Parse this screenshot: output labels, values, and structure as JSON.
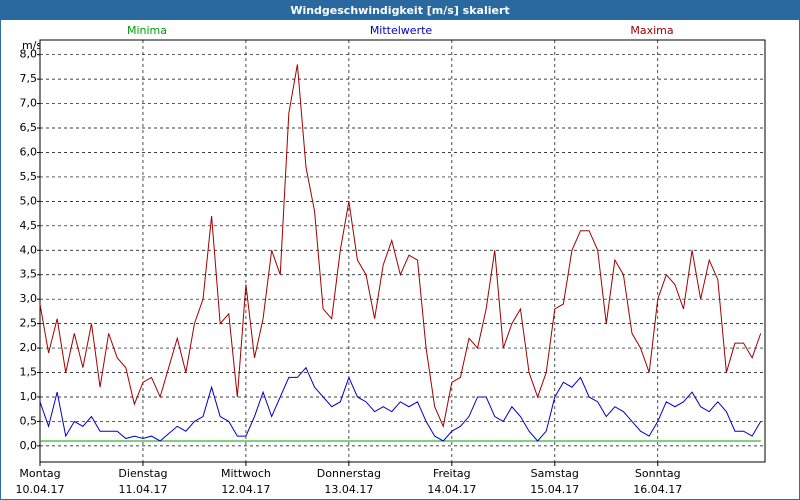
{
  "chart_data": {
    "type": "line",
    "title": "Windgeschwindigkeit [m/s] skaliert",
    "y_label": "m/s",
    "x": [
      0,
      2,
      4,
      6,
      8,
      10,
      12,
      14,
      16,
      18,
      20,
      22,
      24,
      26,
      28,
      30,
      32,
      34,
      36,
      38,
      40,
      42,
      44,
      46,
      48,
      50,
      52,
      54,
      56,
      58,
      60,
      62,
      64,
      66,
      68,
      70,
      72,
      74,
      76,
      78,
      80,
      82,
      84,
      86,
      88,
      90,
      92,
      94,
      96,
      98,
      100,
      102,
      104,
      106,
      108,
      110,
      112,
      114,
      116,
      118,
      120,
      122,
      124,
      126,
      128,
      130,
      132,
      134,
      136,
      138,
      140,
      142,
      144,
      146,
      148,
      150,
      152,
      154,
      156,
      158,
      160,
      162,
      164,
      166,
      168
    ],
    "series": [
      {
        "name": "Minima",
        "color": "#00a000",
        "x": [
          0,
          168
        ],
        "values": [
          0.1,
          0.1
        ]
      },
      {
        "name": "Mittelwerte",
        "color": "#0000c8",
        "values": [
          0.9,
          0.4,
          1.1,
          0.2,
          0.5,
          0.4,
          0.6,
          0.3,
          0.3,
          0.3,
          0.15,
          0.2,
          0.15,
          0.2,
          0.1,
          0.25,
          0.4,
          0.3,
          0.5,
          0.6,
          1.2,
          0.6,
          0.5,
          0.2,
          0.2,
          0.6,
          1.1,
          0.6,
          1.0,
          1.4,
          1.4,
          1.6,
          1.2,
          1.0,
          0.8,
          0.9,
          1.4,
          1.0,
          0.9,
          0.7,
          0.8,
          0.7,
          0.9,
          0.8,
          0.9,
          0.5,
          0.2,
          0.1,
          0.3,
          0.4,
          0.6,
          1.0,
          1.0,
          0.6,
          0.5,
          0.8,
          0.6,
          0.3,
          0.1,
          0.3,
          1.0,
          1.3,
          1.2,
          1.4,
          1.0,
          0.9,
          0.6,
          0.8,
          0.7,
          0.5,
          0.3,
          0.2,
          0.5,
          0.9,
          0.8,
          0.9,
          1.1,
          0.8,
          0.7,
          0.9,
          0.7,
          0.3,
          0.3,
          0.2,
          0.5
        ]
      },
      {
        "name": "Maxima",
        "color": "#a00000",
        "values": [
          2.9,
          1.9,
          2.6,
          1.5,
          2.3,
          1.6,
          2.5,
          1.2,
          2.3,
          1.8,
          1.6,
          0.85,
          1.3,
          1.4,
          1.0,
          1.6,
          2.2,
          1.5,
          2.5,
          3.0,
          4.7,
          2.5,
          2.7,
          1.0,
          3.3,
          1.8,
          2.6,
          4.0,
          3.5,
          6.8,
          7.8,
          5.7,
          4.8,
          2.8,
          2.6,
          4.0,
          5.0,
          3.8,
          3.5,
          2.6,
          3.7,
          4.2,
          3.5,
          3.9,
          3.8,
          2.0,
          0.8,
          0.4,
          1.3,
          1.4,
          2.2,
          2.0,
          2.8,
          4.0,
          2.0,
          2.5,
          2.8,
          1.5,
          1.0,
          1.5,
          2.8,
          2.9,
          4.0,
          4.4,
          4.4,
          4.0,
          2.5,
          3.8,
          3.5,
          2.3,
          2.0,
          1.5,
          3.0,
          3.5,
          3.3,
          2.8,
          4.0,
          3.0,
          3.8,
          3.4,
          1.5,
          2.1,
          2.1,
          1.8,
          2.3
        ]
      }
    ],
    "xlim": [
      0,
      169
    ],
    "xticks": [
      {
        "value": 0,
        "label": "Montag",
        "date": "10.04.17"
      },
      {
        "value": 24,
        "label": "Dienstag",
        "date": "11.04.17"
      },
      {
        "value": 48,
        "label": "Mittwoch",
        "date": "12.04.17"
      },
      {
        "value": 72,
        "label": "Donnerstag",
        "date": "13.04.17"
      },
      {
        "value": 96,
        "label": "Freitag",
        "date": "14.04.17"
      },
      {
        "value": 120,
        "label": "Samstag",
        "date": "15.04.17"
      },
      {
        "value": 144,
        "label": "Sonntag",
        "date": "16.04.17"
      }
    ],
    "ylim": [
      -0.33,
      8.3
    ],
    "yticks": [
      {
        "value": 0,
        "label": "0,0"
      },
      {
        "value": 0.5,
        "label": "0,5"
      },
      {
        "value": 1,
        "label": "1,0"
      },
      {
        "value": 1.5,
        "label": "1,5"
      },
      {
        "value": 2,
        "label": "2,0"
      },
      {
        "value": 2.5,
        "label": "2,5"
      },
      {
        "value": 3,
        "label": "3,0"
      },
      {
        "value": 3.5,
        "label": "3,5"
      },
      {
        "value": 4,
        "label": "4,0"
      },
      {
        "value": 4.5,
        "label": "4,5"
      },
      {
        "value": 5,
        "label": "5,0"
      },
      {
        "value": 5.5,
        "label": "5,5"
      },
      {
        "value": 6,
        "label": "6,0"
      },
      {
        "value": 6.5,
        "label": "6,5"
      },
      {
        "value": 7,
        "label": "7,0"
      },
      {
        "value": 7.5,
        "label": "7,5"
      },
      {
        "value": 8,
        "label": "8,0"
      }
    ],
    "grid": true
  }
}
